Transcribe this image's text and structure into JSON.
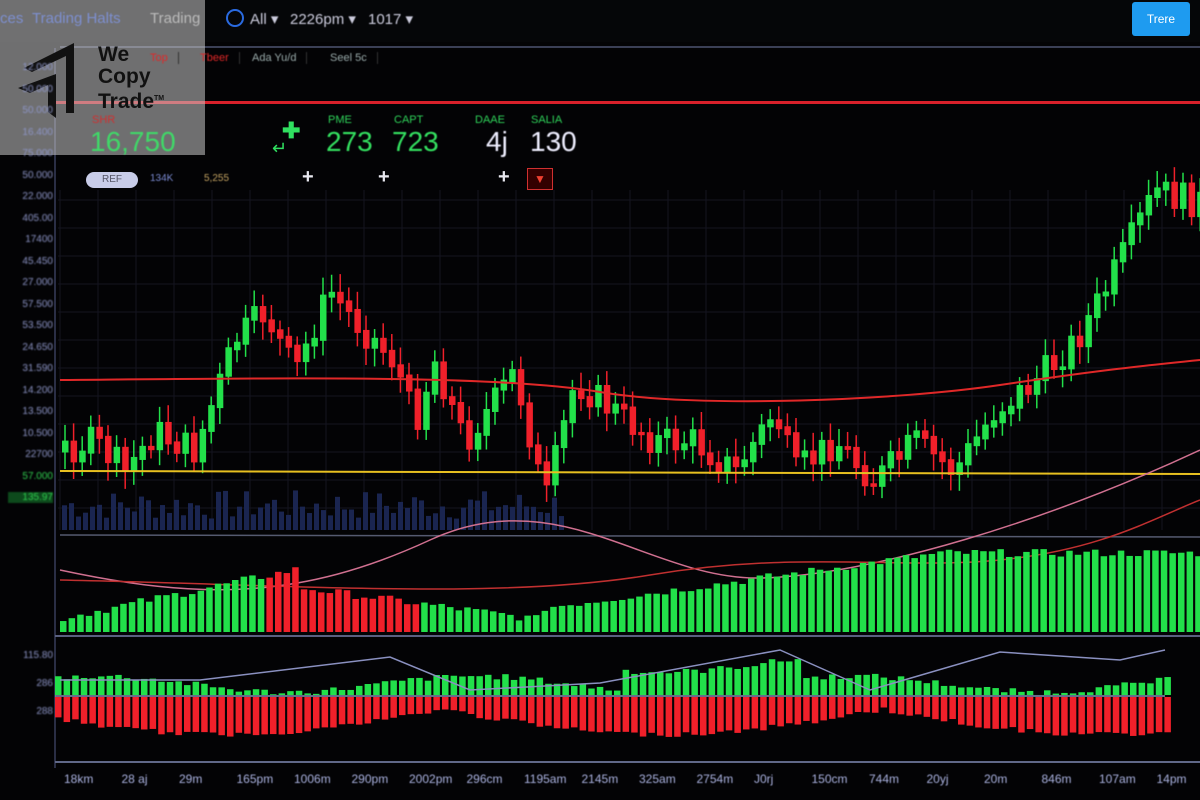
{
  "topbar": {
    "nav": [
      "ces",
      "Trading Halts",
      "Trading"
    ],
    "filter": "All",
    "time": "2226pm",
    "period": "1017",
    "button": "Trere"
  },
  "tabs": [
    "Top",
    "Tbeer",
    "Ada Yu/d",
    "Seel 5c"
  ],
  "stats": {
    "main_label": "SHR",
    "main_value": "16,750",
    "items": [
      {
        "label": "PME",
        "value": "273"
      },
      {
        "label": "CAPT",
        "value": "723"
      },
      {
        "label": "DAAE",
        "value": "4j"
      },
      {
        "label": "SALIA",
        "value": "130"
      }
    ],
    "pill": "REF",
    "chip1": "134K",
    "chip2": "5,255"
  },
  "y_axis": [
    "12.000",
    "50.000",
    "50.000",
    "16.400",
    "75.000",
    "50.000",
    "22.000",
    "405.00",
    "17400",
    "45.450",
    "27.000",
    "57.500",
    "53.500",
    "24.650",
    "31.590",
    "14.200",
    "13.500",
    "10.500",
    "22700",
    "57.000",
    "135.97",
    "115.80",
    "286",
    "288"
  ],
  "x_axis": [
    "18km",
    "28 aj",
    "29m",
    "165pm",
    "1006m",
    "290pm",
    "2002pm",
    "296cm",
    "1195am",
    "2145m",
    "325am",
    "2754m",
    "J0rj",
    "150cm",
    "744m",
    "20yj",
    "20m",
    "846m",
    "107am",
    "14pm"
  ],
  "logo": {
    "text": [
      "We",
      "Copy",
      "Trade"
    ],
    "tm": "TM"
  },
  "colors": {
    "up": "#22e04a",
    "down": "#f0202a",
    "ma_red": "#e02828",
    "ma_yellow": "#e8c020",
    "ma_pink": "#d07090",
    "accent": "#1e9bf0"
  }
}
